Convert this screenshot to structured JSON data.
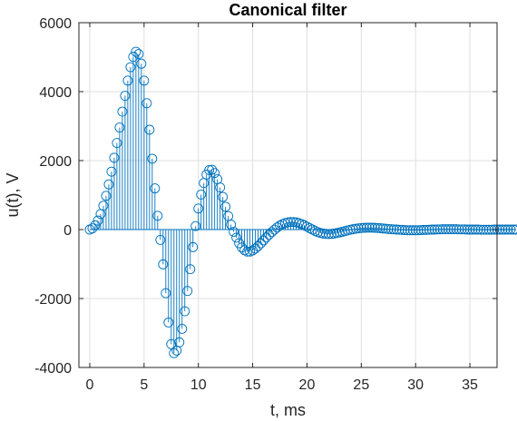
{
  "chart_data": {
    "type": "stem",
    "title": "Canonical filter",
    "xlabel": "t, ms",
    "ylabel": "u(t), V",
    "xlim": [
      -1,
      37.5
    ],
    "ylim": [
      -4000,
      6000
    ],
    "xticks": [
      0,
      5,
      10,
      15,
      20,
      25,
      30,
      35
    ],
    "yticks": [
      -4000,
      -2000,
      0,
      2000,
      4000,
      6000
    ],
    "grid": true,
    "marker": "circle",
    "series_color": "#0072BD",
    "x_step": 0.25,
    "x_start": 0,
    "values": [
      0,
      35,
      122,
      260,
      450,
      690,
      978,
      1310,
      1680,
      2082,
      2511,
      2960,
      3420,
      3880,
      4320,
      4710,
      5010,
      5155,
      5090,
      4810,
      4320,
      3665,
      2895,
      2055,
      1195,
      400,
      -300,
      -1010,
      -1845,
      -2695,
      -3325,
      -3585,
      -3510,
      -3270,
      -2880,
      -2370,
      -1780,
      -1150,
      -510,
      100,
      610,
      1015,
      1350,
      1595,
      1725,
      1735,
      1640,
      1460,
      1220,
      945,
      660,
      390,
      145,
      -65,
      -235,
      -395,
      -520,
      -600,
      -640,
      -640,
      -605,
      -550,
      -480,
      -400,
      -315,
      -230,
      -150,
      -75,
      -5,
      60,
      115,
      160,
      190,
      210,
      220,
      220,
      210,
      190,
      160,
      125,
      85,
      40,
      0,
      -40,
      -75,
      -100,
      -115,
      -125,
      -130,
      -125,
      -115,
      -100,
      -85,
      -65,
      -45,
      -25,
      -5,
      10,
      25,
      35,
      45,
      50,
      55,
      55,
      55,
      50,
      45,
      40,
      30,
      25,
      15,
      10,
      5,
      0,
      -5,
      -10,
      -15,
      -20,
      -20,
      -20,
      -20,
      -20,
      -15,
      -10,
      -10,
      -5,
      0,
      0,
      5,
      5,
      10,
      10,
      10,
      10,
      10,
      10,
      5,
      5,
      5,
      0,
      0,
      0,
      0,
      0,
      -5,
      -5,
      -5,
      -5,
      -5,
      0,
      0,
      0,
      0,
      0,
      0,
      0,
      0,
      0
    ]
  }
}
